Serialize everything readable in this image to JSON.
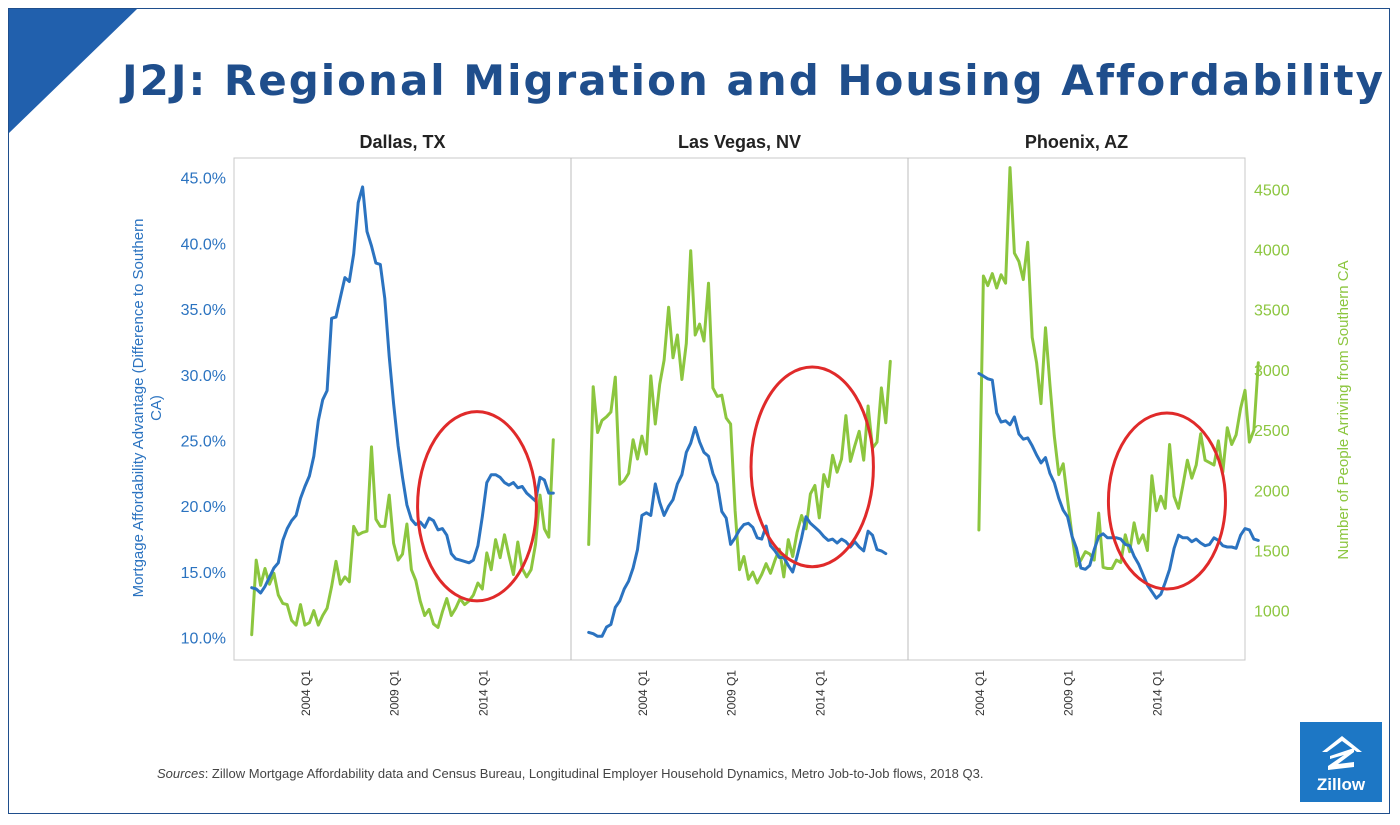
{
  "title": "J2J: Regional Migration and Housing Affordability",
  "sources_label": "Sources",
  "sources_text": ": Zillow Mortgage Affordability data and Census Bureau, Longitudinal Employer Household Dynamics, Metro Job-to-Job flows, 2018 Q3.",
  "logo_text": "Zillow",
  "colors": {
    "title": "#1f4e8c",
    "affordability": "#2b73c0",
    "arrivals": "#8cc63f",
    "highlight": "#e02a2a",
    "logo_bg": "#1d77c5"
  },
  "chart_data": {
    "type": "line",
    "panels": [
      {
        "title": "Dallas, TX",
        "affordability": {
          "start": 2001.0,
          "step": 0.25,
          "values": [
            13.8,
            13.7,
            13.4,
            13.9,
            14.6,
            15.3,
            15.7,
            17.4,
            18.3,
            18.9,
            19.3,
            20.6,
            21.5,
            22.3,
            23.8,
            26.5,
            28.1,
            28.8,
            34.3,
            34.4,
            35.9,
            37.4,
            37.1,
            39.2,
            43.1,
            44.3,
            40.9,
            39.8,
            38.5,
            38.4,
            35.8,
            31.4,
            27.8,
            24.6,
            22.2,
            20.1,
            19.0,
            18.6,
            18.8,
            18.4,
            19.1,
            18.9,
            18.2,
            18.3,
            17.8,
            16.4,
            16.0,
            15.9,
            15.8,
            15.7,
            15.9,
            17.0,
            19.2,
            21.8,
            22.4,
            22.4,
            22.2,
            21.8,
            21.6,
            21.8,
            21.4,
            21.5,
            21.0,
            20.7,
            20.4,
            22.2,
            22.0,
            21.0,
            21.0
          ]
        },
        "arrivals": {
          "start": 2001.0,
          "step": 0.25,
          "values": [
            800,
            1420,
            1210,
            1350,
            1220,
            1310,
            1130,
            1060,
            1050,
            920,
            880,
            1050,
            880,
            900,
            1000,
            880,
            960,
            1020,
            1200,
            1410,
            1220,
            1280,
            1240,
            1700,
            1630,
            1650,
            1660,
            2360,
            1760,
            1700,
            1700,
            1960,
            1560,
            1420,
            1470,
            1720,
            1340,
            1250,
            1080,
            960,
            1010,
            890,
            860,
            990,
            1100,
            960,
            1020,
            1100,
            1050,
            1080,
            1130,
            1230,
            1180,
            1480,
            1340,
            1590,
            1440,
            1630,
            1460,
            1300,
            1570,
            1350,
            1280,
            1340,
            1550,
            1960,
            1680,
            1610,
            2420
          ]
        },
        "ellipse": {
          "cx": 2013.7,
          "cy": 20.0,
          "rx": 3.35,
          "ry": 7.2,
          "axis": "left"
        }
      },
      {
        "title": "Las Vegas, NV",
        "affordability": {
          "start": 2001.0,
          "step": 0.25,
          "values": [
            10.4,
            10.3,
            10.1,
            10.1,
            10.8,
            11.0,
            12.3,
            12.8,
            13.7,
            14.3,
            15.3,
            16.7,
            19.3,
            19.5,
            19.3,
            21.7,
            20.3,
            19.3,
            20.0,
            20.5,
            21.7,
            22.4,
            24.1,
            24.8,
            26.0,
            24.9,
            24.1,
            23.8,
            22.5,
            21.7,
            19.6,
            19.1,
            17.1,
            17.6,
            18.2,
            18.6,
            18.7,
            18.4,
            17.6,
            17.5,
            18.5,
            17.0,
            16.6,
            16.1,
            16.1,
            15.5,
            15.0,
            16.2,
            17.6,
            19.2,
            18.7,
            18.4,
            18.1,
            17.7,
            17.4,
            17.5,
            17.2,
            17.5,
            17.3,
            16.9,
            17.3,
            16.9,
            16.6,
            18.1,
            17.8,
            16.7,
            16.6,
            16.4
          ]
        },
        "arrivals": {
          "start": 2001.0,
          "step": 0.25,
          "values": [
            1550,
            2860,
            2480,
            2580,
            2610,
            2650,
            2940,
            2050,
            2080,
            2140,
            2420,
            2260,
            2450,
            2300,
            2950,
            2550,
            2880,
            3080,
            3520,
            3100,
            3290,
            2920,
            3220,
            3990,
            3290,
            3380,
            3240,
            3720,
            2850,
            2780,
            2790,
            2600,
            2550,
            1830,
            1340,
            1450,
            1260,
            1320,
            1230,
            1300,
            1390,
            1310,
            1420,
            1510,
            1280,
            1590,
            1450,
            1650,
            1790,
            1680,
            1970,
            2040,
            1770,
            2130,
            2030,
            2290,
            2150,
            2260,
            2620,
            2240,
            2370,
            2490,
            2250,
            2700,
            2350,
            2400,
            2850,
            2560,
            3070
          ]
        },
        "ellipse": {
          "cx": 2013.6,
          "cy": 23.0,
          "rx": 3.45,
          "ry": 7.6,
          "axis": "left"
        }
      },
      {
        "title": "Phoenix, AZ",
        "affordability": {
          "start": 2004.0,
          "step": 0.25,
          "values": [
            30.1,
            29.9,
            29.7,
            29.6,
            27.1,
            26.4,
            26.5,
            26.2,
            26.8,
            25.5,
            25.1,
            25.2,
            24.6,
            23.9,
            23.3,
            23.7,
            22.5,
            21.8,
            20.6,
            19.7,
            19.2,
            17.7,
            16.8,
            15.3,
            15.2,
            15.5,
            16.7,
            17.7,
            17.9,
            17.6,
            17.6,
            17.6,
            17.5,
            17.1,
            17.0,
            16.2,
            15.6,
            14.8,
            14.0,
            13.5,
            13.0,
            13.3,
            14.2,
            15.2,
            16.8,
            17.8,
            17.6,
            17.6,
            17.3,
            17.5,
            17.2,
            17.0,
            17.1,
            17.6,
            17.4,
            17.0,
            16.9,
            16.9,
            16.8,
            17.8,
            18.3,
            18.2,
            17.5,
            17.4
          ]
        },
        "arrivals": {
          "start": 2004.0,
          "step": 0.25,
          "values": [
            1670,
            3780,
            3700,
            3800,
            3680,
            3790,
            3720,
            4680,
            3970,
            3900,
            3750,
            4060,
            3270,
            3060,
            2720,
            3350,
            2880,
            2450,
            2130,
            2220,
            1920,
            1620,
            1370,
            1420,
            1490,
            1470,
            1420,
            1810,
            1360,
            1350,
            1350,
            1420,
            1400,
            1630,
            1490,
            1730,
            1560,
            1630,
            1500,
            2120,
            1830,
            1950,
            1850,
            2380,
            1950,
            1850,
            2040,
            2250,
            2100,
            2210,
            2470,
            2250,
            2230,
            2210,
            2410,
            2150,
            2520,
            2380,
            2460,
            2680,
            2830,
            2400,
            2500,
            3060
          ]
        },
        "ellipse": {
          "cx": 2014.6,
          "cy": 20.4,
          "rx": 3.3,
          "ry": 6.7,
          "axis": "left"
        }
      }
    ],
    "x_ticks": [
      "2004 Q1",
      "2009 Q1",
      "2014 Q1"
    ],
    "x_tick_values": [
      2004,
      2009,
      2014
    ],
    "xlim": [
      2000,
      2019
    ],
    "y_left": {
      "label": "Mortgage Affordability Advantage (Difference to Southern CA)",
      "ticks": [
        "10.0%",
        "15.0%",
        "20.0%",
        "25.0%",
        "30.0%",
        "35.0%",
        "40.0%",
        "45.0%"
      ],
      "tick_values": [
        10,
        15,
        20,
        25,
        30,
        35,
        40,
        45
      ],
      "ylim": [
        8.3,
        46.5
      ]
    },
    "y_right": {
      "label": "Number of People Arriving from Southern CA",
      "ticks": [
        "1000",
        "1500",
        "2000",
        "2500",
        "3000",
        "3500",
        "4000",
        "4500"
      ],
      "tick_values": [
        1000,
        1500,
        2000,
        2500,
        3000,
        3500,
        4000,
        4500
      ],
      "ylim": [
        590,
        4760
      ]
    },
    "grid": false,
    "legend": "none"
  }
}
